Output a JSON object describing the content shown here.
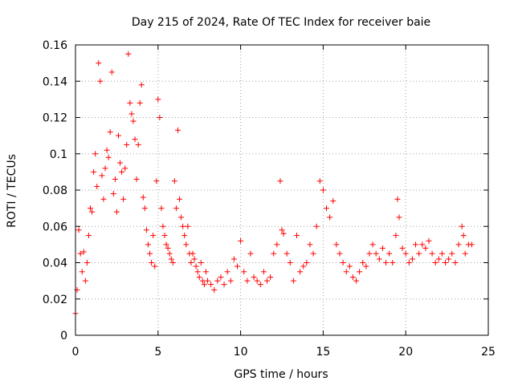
{
  "chart_data": {
    "type": "scatter",
    "title": "Day 215 of 2024, Rate Of TEC Index for receiver baie",
    "xlabel": "GPS time / hours",
    "ylabel": "ROTI / TECUs",
    "xlim": [
      0,
      25
    ],
    "ylim": [
      0,
      0.16
    ],
    "x_ticks": [
      0,
      5,
      10,
      15,
      20,
      25
    ],
    "x_tick_labels": [
      "0",
      "5",
      "10",
      "15",
      "20",
      "25"
    ],
    "y_ticks": [
      0,
      0.02,
      0.04,
      0.06,
      0.08,
      0.1,
      0.12,
      0.14,
      0.16
    ],
    "y_tick_labels": [
      "0",
      "0.02",
      "0.04",
      "0.06",
      "0.08",
      "0.1",
      "0.12",
      "0.14",
      "0.16"
    ],
    "grid": true,
    "marker": "plus",
    "series_color": "#ff0000",
    "series": [
      {
        "name": "ROTI",
        "x": [
          0.0,
          0.1,
          0.2,
          0.3,
          0.4,
          0.5,
          0.6,
          0.7,
          0.8,
          0.9,
          1.0,
          1.1,
          1.2,
          1.3,
          1.4,
          1.5,
          1.6,
          1.7,
          1.8,
          1.9,
          2.0,
          2.1,
          2.2,
          2.3,
          2.4,
          2.5,
          2.6,
          2.7,
          2.8,
          2.9,
          3.0,
          3.1,
          3.2,
          3.3,
          3.4,
          3.5,
          3.6,
          3.7,
          3.8,
          3.9,
          4.0,
          4.1,
          4.2,
          4.3,
          4.4,
          4.5,
          4.6,
          4.7,
          4.8,
          4.9,
          5.0,
          5.1,
          5.2,
          5.3,
          5.4,
          5.5,
          5.6,
          5.7,
          5.8,
          5.9,
          6.0,
          6.1,
          6.2,
          6.3,
          6.4,
          6.5,
          6.6,
          6.7,
          6.8,
          6.9,
          7.0,
          7.1,
          7.2,
          7.3,
          7.4,
          7.5,
          7.6,
          7.7,
          7.8,
          7.9,
          8.0,
          8.2,
          8.4,
          8.6,
          8.8,
          9.0,
          9.2,
          9.4,
          9.6,
          9.8,
          10.0,
          10.2,
          10.4,
          10.6,
          10.8,
          11.0,
          11.2,
          11.4,
          11.6,
          11.8,
          12.0,
          12.2,
          12.4,
          12.5,
          12.6,
          12.8,
          13.0,
          13.2,
          13.4,
          13.6,
          13.8,
          14.0,
          14.2,
          14.4,
          14.6,
          14.8,
          15.0,
          15.2,
          15.4,
          15.6,
          15.8,
          16.0,
          16.2,
          16.4,
          16.6,
          16.8,
          17.0,
          17.2,
          17.4,
          17.6,
          17.8,
          18.0,
          18.2,
          18.4,
          18.6,
          18.8,
          19.0,
          19.2,
          19.4,
          19.5,
          19.6,
          19.8,
          20.0,
          20.2,
          20.4,
          20.6,
          20.8,
          21.0,
          21.2,
          21.4,
          21.6,
          21.8,
          22.0,
          22.2,
          22.4,
          22.6,
          22.8,
          23.0,
          23.2,
          23.4,
          23.5,
          23.6,
          23.8,
          24.0
        ],
        "y": [
          0.012,
          0.025,
          0.058,
          0.045,
          0.035,
          0.046,
          0.03,
          0.04,
          0.055,
          0.07,
          0.068,
          0.09,
          0.1,
          0.082,
          0.15,
          0.14,
          0.088,
          0.075,
          0.092,
          0.102,
          0.098,
          0.112,
          0.145,
          0.078,
          0.086,
          0.068,
          0.11,
          0.095,
          0.09,
          0.075,
          0.092,
          0.105,
          0.155,
          0.128,
          0.122,
          0.118,
          0.108,
          0.086,
          0.105,
          0.128,
          0.138,
          0.076,
          0.07,
          0.058,
          0.05,
          0.045,
          0.04,
          0.055,
          0.038,
          0.085,
          0.13,
          0.12,
          0.07,
          0.06,
          0.055,
          0.05,
          0.048,
          0.045,
          0.042,
          0.04,
          0.085,
          0.07,
          0.113,
          0.075,
          0.065,
          0.06,
          0.055,
          0.05,
          0.06,
          0.045,
          0.04,
          0.045,
          0.042,
          0.038,
          0.035,
          0.032,
          0.04,
          0.03,
          0.028,
          0.035,
          0.03,
          0.028,
          0.025,
          0.03,
          0.032,
          0.028,
          0.035,
          0.03,
          0.042,
          0.038,
          0.052,
          0.035,
          0.03,
          0.045,
          0.032,
          0.03,
          0.028,
          0.035,
          0.03,
          0.032,
          0.045,
          0.05,
          0.085,
          0.058,
          0.056,
          0.045,
          0.04,
          0.03,
          0.055,
          0.035,
          0.038,
          0.04,
          0.05,
          0.045,
          0.06,
          0.085,
          0.08,
          0.07,
          0.065,
          0.074,
          0.05,
          0.045,
          0.04,
          0.035,
          0.038,
          0.032,
          0.03,
          0.035,
          0.04,
          0.038,
          0.045,
          0.05,
          0.045,
          0.042,
          0.048,
          0.04,
          0.045,
          0.04,
          0.055,
          0.075,
          0.065,
          0.048,
          0.045,
          0.04,
          0.042,
          0.05,
          0.045,
          0.05,
          0.048,
          0.052,
          0.045,
          0.04,
          0.042,
          0.045,
          0.04,
          0.042,
          0.045,
          0.04,
          0.05,
          0.06,
          0.055,
          0.045,
          0.05,
          0.05
        ]
      }
    ]
  }
}
